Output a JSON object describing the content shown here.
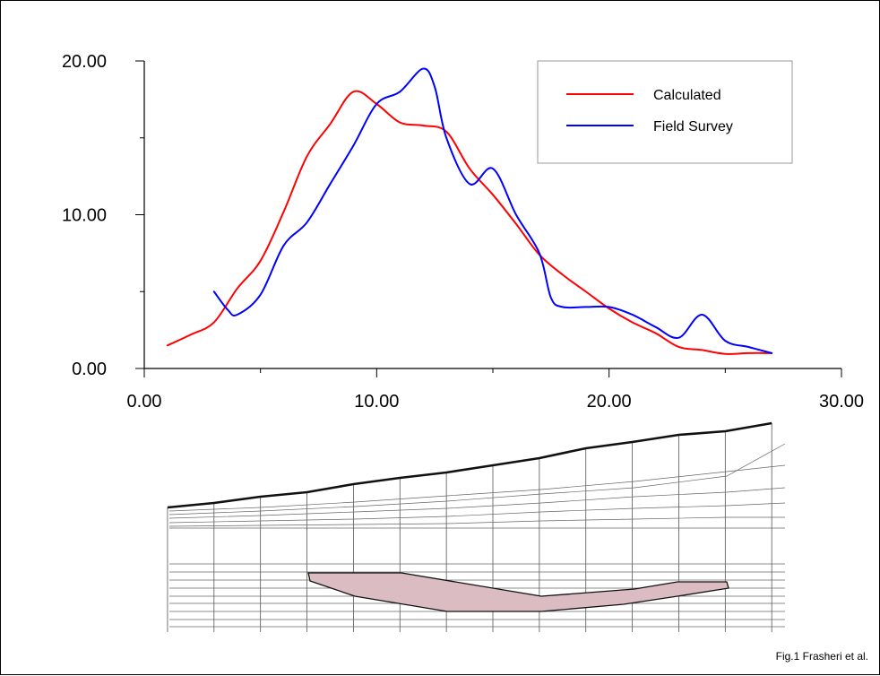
{
  "chart_data": {
    "type": "line",
    "title": "",
    "xlabel": "",
    "ylabel": "",
    "xlim": [
      0,
      30
    ],
    "ylim": [
      0,
      20
    ],
    "x_ticks": [
      "0.00",
      "10.00",
      "20.00",
      "30.00"
    ],
    "y_ticks": [
      "0.00",
      "10.00",
      "20.00"
    ],
    "grid": false,
    "legend_position": "top-right",
    "series": [
      {
        "name": "Calculated",
        "color": "#ff0000",
        "points": [
          [
            1.0,
            1.5
          ],
          [
            2.0,
            2.2
          ],
          [
            3.0,
            3.0
          ],
          [
            4.0,
            5.2
          ],
          [
            5.0,
            7.0
          ],
          [
            6.0,
            10.2
          ],
          [
            7.0,
            13.8
          ],
          [
            8.0,
            15.9
          ],
          [
            9.0,
            18.0
          ],
          [
            10.0,
            17.2
          ],
          [
            11.0,
            16.0
          ],
          [
            12.0,
            15.8
          ],
          [
            13.0,
            15.4
          ],
          [
            14.0,
            13.0
          ],
          [
            15.0,
            11.3
          ],
          [
            16.0,
            9.4
          ],
          [
            17.0,
            7.4
          ],
          [
            18.0,
            6.1
          ],
          [
            19.0,
            5.0
          ],
          [
            20.0,
            3.9
          ],
          [
            21.0,
            3.0
          ],
          [
            22.0,
            2.3
          ],
          [
            23.0,
            1.4
          ],
          [
            24.0,
            1.2
          ],
          [
            25.0,
            0.95
          ],
          [
            26.0,
            1.0
          ],
          [
            27.0,
            1.0
          ]
        ]
      },
      {
        "name": "Field Survey",
        "color": "#0000ff",
        "points": [
          [
            3.0,
            5.0
          ],
          [
            3.6,
            3.8
          ],
          [
            4.0,
            3.5
          ],
          [
            5.0,
            4.8
          ],
          [
            6.0,
            8.0
          ],
          [
            7.0,
            9.5
          ],
          [
            8.0,
            12.0
          ],
          [
            9.0,
            14.5
          ],
          [
            10.0,
            17.2
          ],
          [
            11.0,
            18.0
          ],
          [
            12.0,
            19.5
          ],
          [
            12.5,
            18.3
          ],
          [
            13.0,
            15.0
          ],
          [
            14.0,
            12.0
          ],
          [
            15.0,
            13.0
          ],
          [
            16.0,
            10.0
          ],
          [
            17.0,
            7.5
          ],
          [
            17.5,
            4.6
          ],
          [
            18.0,
            4.0
          ],
          [
            19.0,
            4.0
          ],
          [
            20.0,
            4.0
          ],
          [
            21.0,
            3.5
          ],
          [
            22.0,
            2.7
          ],
          [
            23.0,
            2.0
          ],
          [
            24.0,
            3.5
          ],
          [
            25.0,
            1.8
          ],
          [
            26.0,
            1.4
          ],
          [
            27.0,
            1.0
          ]
        ]
      }
    ]
  },
  "section": {
    "surface_x": [
      1,
      3,
      5,
      7,
      9,
      11,
      13,
      15,
      17,
      19,
      21,
      23,
      25,
      27
    ]
  },
  "caption": "Fig.1 Frasheri et al."
}
